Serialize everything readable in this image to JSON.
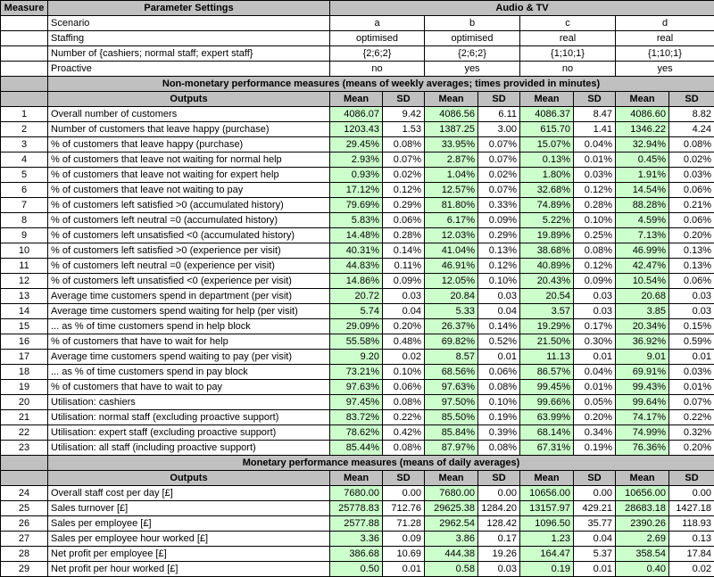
{
  "header": {
    "measure": "Measure",
    "parameter_settings": "Parameter Settings",
    "audio_tv": "Audio & TV"
  },
  "params": [
    {
      "label": "Scenario",
      "values": [
        "a",
        "b",
        "c",
        "d"
      ]
    },
    {
      "label": "Staffing",
      "values": [
        "optimised",
        "optimised",
        "real",
        "real"
      ]
    },
    {
      "label": "Number of {cashiers; normal staff; expert staff}",
      "values": [
        "{2;6;2}",
        "{2;6;2}",
        "{1;10;1}",
        "{1;10;1}"
      ]
    },
    {
      "label": "Proactive",
      "values": [
        "no",
        "yes",
        "no",
        "yes"
      ]
    }
  ],
  "section1": {
    "title": "Non-monetary performance measures (means of weekly averages; times provided in minutes)",
    "outputs_label": "Outputs",
    "mean_label": "Mean",
    "sd_label": "SD",
    "rows": [
      {
        "n": "1",
        "label": "Overall number of customers",
        "v": [
          "4086.07",
          "9.42",
          "4086.56",
          "6.11",
          "4086.37",
          "8.47",
          "4086.60",
          "8.82"
        ]
      },
      {
        "n": "2",
        "label": "Number of customers that leave happy (purchase)",
        "v": [
          "1203.43",
          "1.53",
          "1387.25",
          "3.00",
          "615.70",
          "1.41",
          "1346.22",
          "4.24"
        ]
      },
      {
        "n": "3",
        "label": "% of customers that leave happy (purchase)",
        "v": [
          "29.45%",
          "0.08%",
          "33.95%",
          "0.07%",
          "15.07%",
          "0.04%",
          "32.94%",
          "0.08%"
        ]
      },
      {
        "n": "4",
        "label": "% of customers that leave not waiting for normal help",
        "v": [
          "2.93%",
          "0.07%",
          "2.87%",
          "0.07%",
          "0.13%",
          "0.01%",
          "0.45%",
          "0.02%"
        ]
      },
      {
        "n": "5",
        "label": "% of customers that leave not waiting for expert help",
        "v": [
          "0.93%",
          "0.02%",
          "1.04%",
          "0.02%",
          "1.80%",
          "0.03%",
          "1.91%",
          "0.03%"
        ]
      },
      {
        "n": "6",
        "label": "% of customers that leave not waiting to pay",
        "v": [
          "17.12%",
          "0.12%",
          "12.57%",
          "0.07%",
          "32.68%",
          "0.12%",
          "14.54%",
          "0.06%"
        ]
      },
      {
        "n": "7",
        "label": "% of customers left satisfied >0 (accumulated history)",
        "v": [
          "79.69%",
          "0.29%",
          "81.80%",
          "0.33%",
          "74.89%",
          "0.28%",
          "88.28%",
          "0.21%"
        ]
      },
      {
        "n": "8",
        "label": "% of customers left neutral =0 (accumulated history)",
        "v": [
          "5.83%",
          "0.06%",
          "6.17%",
          "0.09%",
          "5.22%",
          "0.10%",
          "4.59%",
          "0.06%"
        ]
      },
      {
        "n": "9",
        "label": "% of customers left unsatisfied <0 (accumulated history)",
        "v": [
          "14.48%",
          "0.28%",
          "12.03%",
          "0.29%",
          "19.89%",
          "0.25%",
          "7.13%",
          "0.20%"
        ]
      },
      {
        "n": "10",
        "label": "% of customers left satisfied >0 (experience per visit)",
        "v": [
          "40.31%",
          "0.14%",
          "41.04%",
          "0.13%",
          "38.68%",
          "0.08%",
          "46.99%",
          "0.13%"
        ]
      },
      {
        "n": "11",
        "label": "% of customers left neutral =0 (experience per visit)",
        "v": [
          "44.83%",
          "0.11%",
          "46.91%",
          "0.12%",
          "40.89%",
          "0.12%",
          "42.47%",
          "0.13%"
        ]
      },
      {
        "n": "12",
        "label": "% of customers left unsatisfied <0 (experience per visit)",
        "v": [
          "14.86%",
          "0.09%",
          "12.05%",
          "0.10%",
          "20.43%",
          "0.09%",
          "10.54%",
          "0.06%"
        ]
      },
      {
        "n": "13",
        "label": "Average time customers spend in department (per visit)",
        "v": [
          "20.72",
          "0.03",
          "20.84",
          "0.03",
          "20.54",
          "0.03",
          "20.68",
          "0.03"
        ]
      },
      {
        "n": "14",
        "label": "Average time customers spend waiting for help (per visit)",
        "v": [
          "5.74",
          "0.04",
          "5.33",
          "0.04",
          "3.57",
          "0.03",
          "3.85",
          "0.03"
        ]
      },
      {
        "n": "15",
        "label": "... as % of time customers spend in help block",
        "v": [
          "29.09%",
          "0.20%",
          "26.37%",
          "0.14%",
          "19.29%",
          "0.17%",
          "20.34%",
          "0.15%"
        ]
      },
      {
        "n": "16",
        "label": "% of customers that have to wait for help",
        "v": [
          "55.58%",
          "0.48%",
          "69.82%",
          "0.52%",
          "21.50%",
          "0.30%",
          "36.92%",
          "0.59%"
        ]
      },
      {
        "n": "17",
        "label": "Average time customers spend waiting to pay (per visit)",
        "v": [
          "9.20",
          "0.02",
          "8.57",
          "0.01",
          "11.13",
          "0.01",
          "9.01",
          "0.01"
        ]
      },
      {
        "n": "18",
        "label": "... as % of time customers spend in pay block",
        "v": [
          "73.21%",
          "0.10%",
          "68.56%",
          "0.06%",
          "86.57%",
          "0.04%",
          "69.91%",
          "0.03%"
        ]
      },
      {
        "n": "19",
        "label": "% of customers that have to wait to pay",
        "v": [
          "97.63%",
          "0.06%",
          "97.63%",
          "0.08%",
          "99.45%",
          "0.01%",
          "99.43%",
          "0.01%"
        ]
      },
      {
        "n": "20",
        "label": "Utilisation: cashiers",
        "v": [
          "97.45%",
          "0.08%",
          "97.50%",
          "0.10%",
          "99.66%",
          "0.05%",
          "99.64%",
          "0.07%"
        ]
      },
      {
        "n": "21",
        "label": "Utilisation: normal staff (excluding proactive support)",
        "v": [
          "83.72%",
          "0.22%",
          "85.50%",
          "0.19%",
          "63.99%",
          "0.20%",
          "74.17%",
          "0.22%"
        ]
      },
      {
        "n": "22",
        "label": "Utilisation: expert staff (excluding proactive support)",
        "v": [
          "78.62%",
          "0.42%",
          "85.84%",
          "0.39%",
          "68.14%",
          "0.34%",
          "74.99%",
          "0.32%"
        ]
      },
      {
        "n": "23",
        "label": "Utilisation: all staff (including proactive support)",
        "v": [
          "85.44%",
          "0.08%",
          "87.97%",
          "0.08%",
          "67.31%",
          "0.19%",
          "76.36%",
          "0.20%"
        ]
      }
    ]
  },
  "section2": {
    "title": "Monetary performance measures (means of daily averages)",
    "outputs_label": "Outputs",
    "mean_label": "Mean",
    "sd_label": "SD",
    "rows": [
      {
        "n": "24",
        "label": "Overall staff cost per day [£]",
        "v": [
          "7680.00",
          "0.00",
          "7680.00",
          "0.00",
          "10656.00",
          "0.00",
          "10656.00",
          "0.00"
        ]
      },
      {
        "n": "25",
        "label": "Sales turnover [£]",
        "v": [
          "25778.83",
          "712.76",
          "29625.38",
          "1284.20",
          "13157.97",
          "429.21",
          "28683.18",
          "1427.18"
        ]
      },
      {
        "n": "26",
        "label": "Sales per employee [£]",
        "v": [
          "2577.88",
          "71.28",
          "2962.54",
          "128.42",
          "1096.50",
          "35.77",
          "2390.26",
          "118.93"
        ]
      },
      {
        "n": "27",
        "label": "Sales per employee hour worked [£]",
        "v": [
          "3.36",
          "0.09",
          "3.86",
          "0.17",
          "1.23",
          "0.04",
          "2.69",
          "0.13"
        ]
      },
      {
        "n": "28",
        "label": "Net profit per employee [£]",
        "v": [
          "386.68",
          "10.69",
          "444.38",
          "19.26",
          "164.47",
          "5.37",
          "358.54",
          "17.84"
        ]
      },
      {
        "n": "29",
        "label": "Net profit per hour worked [£]",
        "v": [
          "0.50",
          "0.01",
          "0.58",
          "0.03",
          "0.19",
          "0.01",
          "0.40",
          "0.02"
        ]
      }
    ]
  }
}
